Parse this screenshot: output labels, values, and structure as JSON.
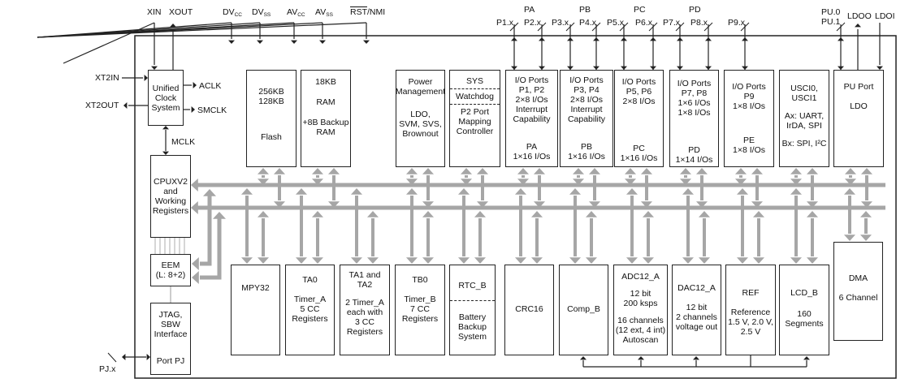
{
  "pins_top": {
    "xin": "XIN",
    "xout": "XOUT",
    "dvcc": {
      "main": "DV",
      "sub": "CC"
    },
    "dvss": {
      "main": "DV",
      "sub": "SS"
    },
    "avcc": {
      "main": "AV",
      "sub": "CC"
    },
    "avss": {
      "main": "AV",
      "sub": "SS"
    },
    "rst": {
      "over": "RST",
      "rest": "/NMI"
    }
  },
  "ports_top": {
    "groups": [
      "PA",
      "PB",
      "PC",
      "PD"
    ],
    "pins": [
      "P1.x",
      "P2.x",
      "P3.x",
      "P4.x",
      "P5.x",
      "P6.x",
      "P7.x",
      "P8.x",
      "P9.x"
    ],
    "pu": [
      "PU.0",
      "PU.1"
    ],
    "ldoo": "LDOO",
    "ldoi": "LDOI"
  },
  "clock_signals": {
    "xt2in": "XT2IN",
    "xt2out": "XT2OUT",
    "aclk": "ACLK",
    "smclk": "SMCLK",
    "mclk": "MCLK",
    "pjx": "PJ.x"
  },
  "blocks_top": {
    "clock": "Unified\nClock\nSystem",
    "flash": {
      "size": "256KB\n128KB",
      "name": "Flash"
    },
    "ram": {
      "size": "18KB",
      "name": "RAM",
      "backup": "+8B Backup\nRAM"
    },
    "power": {
      "title": "Power\nManagement",
      "body": "LDO,\nSVM, SVS,\nBrownout"
    },
    "sys": [
      "SYS",
      "Watchdog",
      "P2 Port\nMapping\nController"
    ],
    "p12": {
      "title": "I/O Ports\nP1, P2\n2×8 I/Os\nInterrupt\nCapability",
      "footer": "PA\n1×16 I/Os"
    },
    "p34": {
      "title": "I/O Ports\nP3, P4\n2×8 I/Os\nInterrupt\nCapability",
      "footer": "PB\n1×16 I/Os"
    },
    "p56": {
      "title": "I/O Ports\nP5, P6\n2×8 I/Os",
      "footer": "PC\n1×16 I/Os"
    },
    "p78": {
      "title": "I/O Ports\nP7, P8\n1×6 I/Os\n1×8 I/Os",
      "footer": "PD\n1×14 I/Os"
    },
    "p9": {
      "title": "I/O Ports\nP9\n1×8 I/Os",
      "footer": "PE\n1×8 I/Os"
    },
    "usci": {
      "title": "USCI0,\nUSCI1",
      "a": "Ax: UART,\nIrDA, SPI",
      "b": "Bx: SPI, I²C"
    },
    "pu": {
      "title": "PU Port",
      "body": "LDO"
    }
  },
  "blocks_left": {
    "cpu": "CPUXV2\nand\nWorking\nRegisters",
    "eem": "EEM\n(L: 8+2)",
    "jtag": {
      "title": "JTAG,\nSBW\nInterface",
      "port": "Port PJ"
    }
  },
  "blocks_bottom": {
    "mpy": "MPY32",
    "ta0": {
      "title": "TA0",
      "body": "Timer_A\n5 CC\nRegisters"
    },
    "ta12": {
      "title": "TA1 and\nTA2",
      "body": "2 Timer_A\neach with\n3 CC\nRegisters"
    },
    "tb0": {
      "title": "TB0",
      "body": "Timer_B\n7 CC\nRegisters"
    },
    "rtc": [
      "RTC_B",
      "Battery\nBackup\nSystem"
    ],
    "crc": "CRC16",
    "comp": "Comp_B",
    "adc": {
      "title": "ADC12_A",
      "a": "12 bit\n200 ksps",
      "b": "16 channels\n(12 ext, 4 int)\nAutoscan"
    },
    "dac": {
      "title": "DAC12_A",
      "body": "12 bit\n2 channels\nvoltage out"
    },
    "ref": {
      "title": "REF",
      "body": "Reference\n1.5 V, 2.0 V,\n2.5 V"
    },
    "lcd": {
      "title": "LCD_B",
      "body": "160\nSegments"
    },
    "dma": {
      "title": "DMA",
      "body": "6 Channel"
    }
  },
  "colors": {
    "bus": "#a6a6a6",
    "line": "#222222"
  }
}
